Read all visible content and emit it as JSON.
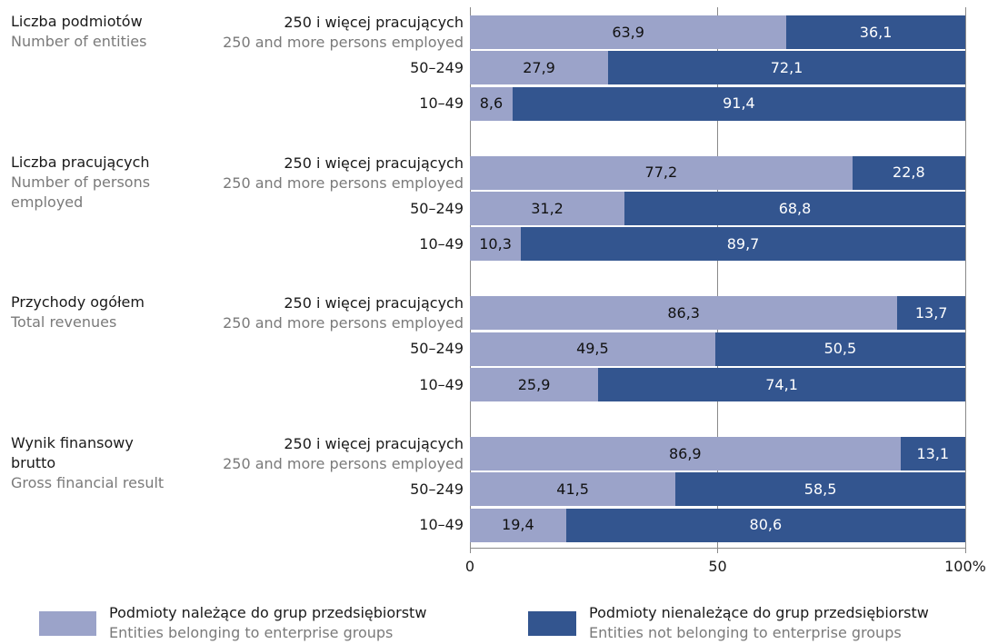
{
  "chart_data": {
    "type": "bar",
    "orientation": "horizontal",
    "stacked": true,
    "groups": [
      {
        "label": "Liczba podmiotów",
        "label_en": "Number of entities",
        "categories": [
          "250 i więcej pracujących",
          "50–249",
          "10–49"
        ],
        "category_notes": [
          "250 and more persons employed",
          null,
          null
        ]
      },
      {
        "label": "Liczba pracujących",
        "label_en": "Number of persons employed",
        "categories": [
          "250 i więcej pracujących",
          "50–249",
          "10–49"
        ],
        "category_notes": [
          "250 and more persons employed",
          null,
          null
        ]
      },
      {
        "label": "Przychody ogółem",
        "label_en": "Total revenues",
        "categories": [
          "250 i więcej pracujących",
          "50–249",
          "10–49"
        ],
        "category_notes": [
          "250 and more persons employed",
          null,
          null
        ]
      },
      {
        "label": "Wynik finansowy brutto",
        "label_en": "Gross financial result",
        "categories": [
          "250 i więcej pracujących",
          "50–249",
          "10–49"
        ],
        "category_notes": [
          "250 and more persons employed",
          null,
          null
        ]
      }
    ],
    "series": [
      {
        "name": "Podmioty należące do grup przedsiębiorstw",
        "name_en": "Entities belonging to enterprise groups",
        "color": "#9ba3c9",
        "text_color": "#111111",
        "values": [
          [
            63.9,
            27.9,
            8.6
          ],
          [
            77.2,
            31.2,
            10.3
          ],
          [
            86.3,
            49.5,
            25.9
          ],
          [
            86.9,
            41.5,
            19.4
          ]
        ],
        "value_labels": [
          [
            "63,9",
            "27,9",
            "8,6"
          ],
          [
            "77,2",
            "31,2",
            "10,3"
          ],
          [
            "86,3",
            "49,5",
            "25,9"
          ],
          [
            "86,9",
            "41,5",
            "19,4"
          ]
        ]
      },
      {
        "name": "Podmioty nienależące do grup przedsiębiorstw",
        "name_en": "Entities not belonging to enterprise groups",
        "color": "#33558f",
        "text_color": "#ffffff",
        "values": [
          [
            36.1,
            72.1,
            91.4
          ],
          [
            22.8,
            68.8,
            89.7
          ],
          [
            13.7,
            50.5,
            74.1
          ],
          [
            13.1,
            58.5,
            80.6
          ]
        ],
        "value_labels": [
          [
            "36,1",
            "72,1",
            "91,4"
          ],
          [
            "22,8",
            "68,8",
            "89,7"
          ],
          [
            "13,7",
            "50,5",
            "74,1"
          ],
          [
            "13,1",
            "58,5",
            "80,6"
          ]
        ]
      }
    ],
    "xlim": [
      0,
      100
    ],
    "xticks": [
      0,
      50,
      {
        "value": 100,
        "label": "100%"
      }
    ],
    "grid": true
  }
}
